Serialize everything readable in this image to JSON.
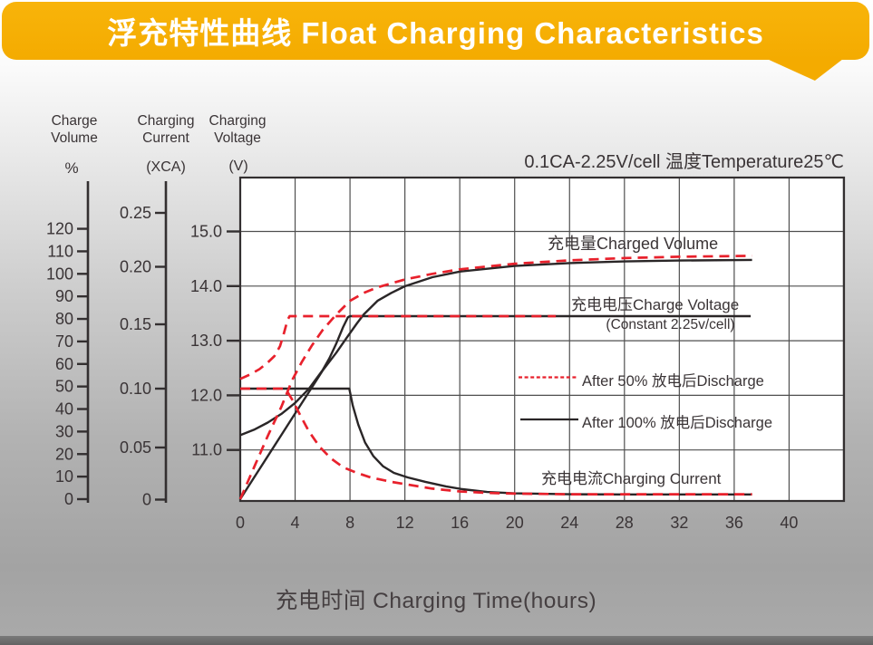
{
  "banner": {
    "title": "浮充特性曲线 Float Charging Characteristics",
    "bg_color": "#f4ab00",
    "text_color": "#ffffff"
  },
  "axes_headers": {
    "charge_volume": {
      "line1": "Charge",
      "line2": "Volume",
      "unit": "%"
    },
    "charging_current": {
      "line1": "Charging",
      "line2": "Current",
      "unit": "(XCA)"
    },
    "charging_voltage": {
      "line1": "Charging",
      "line2": "Voltage",
      "unit": "(V)"
    }
  },
  "condition_label": "0.1CA-2.25V/cell  温度Temperature25℃",
  "x_axis_title": "充电时间 Charging Time(hours)",
  "annotations": {
    "charged_volume": "充电量Charged Volume",
    "charge_voltage": "充电电压Charge Voltage",
    "charge_voltage_sub": "(Constant 2.25v/cell)",
    "charging_current": "充电电流Charging Current"
  },
  "legend": [
    {
      "id": "after50",
      "label": "After 50% 放电后Discharge",
      "style": "red-dashed"
    },
    {
      "id": "after100",
      "label": "After 100% 放电后Discharge",
      "style": "black-solid"
    }
  ],
  "colors": {
    "red": "#e8212c",
    "black": "#2a2627",
    "ink": "#3a3436",
    "grid": "#4f4f4f",
    "plot_bg": "#ffffff"
  },
  "chart_data": {
    "type": "line",
    "title": "浮充特性曲线 Float Charging Characteristics",
    "condition": "0.1CA-2.25V/cell 温度Temperature25℃",
    "x_axis": {
      "label": "充电时间 Charging Time(hours)",
      "unit": "hours",
      "ticks": [
        0,
        4,
        8,
        12,
        16,
        20,
        24,
        28,
        32,
        36,
        40
      ],
      "range": [
        0,
        44
      ],
      "grid": true
    },
    "y_axes": [
      {
        "id": "volume",
        "label": "Charge Volume",
        "unit": "%",
        "ticks": [
          0,
          10,
          20,
          30,
          40,
          50,
          60,
          70,
          80,
          90,
          100,
          110,
          120
        ],
        "range": [
          0,
          130
        ]
      },
      {
        "id": "current",
        "label": "Charging Current",
        "unit": "XCA",
        "tick_labels": [
          "0",
          "0.05",
          "0.10",
          "0.15",
          "0.20",
          "0.25"
        ],
        "range": [
          0,
          0.27
        ]
      },
      {
        "id": "voltage",
        "label": "Charging Voltage",
        "unit": "V",
        "tick_labels": [
          "11.0",
          "12.0",
          "13.0",
          "14.0",
          "15.0"
        ],
        "range": [
          10,
          16
        ]
      }
    ],
    "series": [
      {
        "name": "Charge Voltage after 100% discharge",
        "axis": "voltage",
        "style": "black-solid",
        "points": [
          [
            0,
            11.27
          ],
          [
            1,
            11.37
          ],
          [
            2,
            11.5
          ],
          [
            3,
            11.66
          ],
          [
            4,
            11.86
          ],
          [
            5,
            12.12
          ],
          [
            6,
            12.46
          ],
          [
            6.5,
            12.68
          ],
          [
            7,
            12.95
          ],
          [
            7.5,
            13.25
          ],
          [
            7.85,
            13.43
          ],
          [
            8,
            13.45
          ],
          [
            20,
            13.45
          ],
          [
            37.2,
            13.45
          ]
        ]
      },
      {
        "name": "Charged Volume after 100% discharge",
        "axis": "volume",
        "style": "black-solid",
        "points": [
          [
            0,
            0
          ],
          [
            1,
            9.5
          ],
          [
            2,
            19
          ],
          [
            3,
            28.5
          ],
          [
            4,
            38
          ],
          [
            5,
            47.5
          ],
          [
            6,
            57
          ],
          [
            7,
            65
          ],
          [
            7.8,
            72
          ],
          [
            8.5,
            78
          ],
          [
            9,
            82
          ],
          [
            10,
            88
          ],
          [
            11,
            91.5
          ],
          [
            12,
            94.5
          ],
          [
            14,
            98.5
          ],
          [
            16,
            101
          ],
          [
            20,
            103.5
          ],
          [
            24,
            104.8
          ],
          [
            28,
            105.5
          ],
          [
            32,
            105.9
          ],
          [
            37.3,
            106.2
          ]
        ]
      },
      {
        "name": "Charging Current after 100% discharge",
        "axis": "current",
        "style": "black-solid",
        "points": [
          [
            0,
            0.1
          ],
          [
            7.95,
            0.1
          ],
          [
            8.2,
            0.085
          ],
          [
            8.6,
            0.068
          ],
          [
            9.1,
            0.052
          ],
          [
            9.7,
            0.04
          ],
          [
            10.4,
            0.031
          ],
          [
            11.2,
            0.025
          ],
          [
            12.2,
            0.021
          ],
          [
            13.5,
            0.017
          ],
          [
            15,
            0.013
          ],
          [
            16.2,
            0.0105
          ],
          [
            18,
            0.008
          ],
          [
            20,
            0.0068
          ],
          [
            24,
            0.006
          ],
          [
            28,
            0.0058
          ],
          [
            37.3,
            0.0058
          ]
        ]
      },
      {
        "name": "Charge Voltage after 50% discharge",
        "axis": "voltage",
        "style": "red-dashed",
        "points": [
          [
            0,
            12.3
          ],
          [
            0.7,
            12.38
          ],
          [
            1.4,
            12.48
          ],
          [
            2,
            12.6
          ],
          [
            2.5,
            12.72
          ],
          [
            2.9,
            12.9
          ],
          [
            3.2,
            13.15
          ],
          [
            3.45,
            13.38
          ],
          [
            3.6,
            13.45
          ],
          [
            10,
            13.45
          ],
          [
            16,
            13.45
          ],
          [
            23,
            13.45
          ]
        ]
      },
      {
        "name": "Charged Volume after 50% discharge",
        "axis": "volume",
        "style": "red-dashed",
        "points": [
          [
            0,
            0
          ],
          [
            1,
            14
          ],
          [
            2,
            28
          ],
          [
            3,
            41
          ],
          [
            3.8,
            53
          ],
          [
            4.5,
            61
          ],
          [
            5.2,
            68
          ],
          [
            6,
            75
          ],
          [
            7,
            82
          ],
          [
            8,
            88
          ],
          [
            9,
            91.5
          ],
          [
            10,
            94
          ],
          [
            12,
            97.5
          ],
          [
            14,
            100
          ],
          [
            16,
            102
          ],
          [
            20,
            104.5
          ],
          [
            24,
            106
          ],
          [
            28,
            107
          ],
          [
            32,
            107.6
          ],
          [
            37.3,
            108
          ]
        ]
      },
      {
        "name": "Charging Current after 50% discharge",
        "axis": "current",
        "style": "red-dashed",
        "points": [
          [
            0,
            0.1
          ],
          [
            3.3,
            0.1
          ],
          [
            3.8,
            0.09
          ],
          [
            4.3,
            0.078
          ],
          [
            5,
            0.062
          ],
          [
            5.8,
            0.048
          ],
          [
            6.6,
            0.038
          ],
          [
            7.5,
            0.03
          ],
          [
            8.5,
            0.025
          ],
          [
            9.5,
            0.021
          ],
          [
            11,
            0.017
          ],
          [
            12,
            0.015
          ],
          [
            14,
            0.011
          ],
          [
            16,
            0.0085
          ],
          [
            18,
            0.0072
          ],
          [
            20,
            0.0065
          ],
          [
            24,
            0.006
          ],
          [
            37.3,
            0.006
          ]
        ]
      }
    ],
    "legend_position": "inside-right",
    "annotations": [
      "充电量Charged Volume",
      "充电电压Charge Voltage (Constant 2.25v/cell)",
      "充电电流Charging Current",
      "After 50% 放电后Discharge",
      "After 100% 放电后Discharge"
    ]
  }
}
